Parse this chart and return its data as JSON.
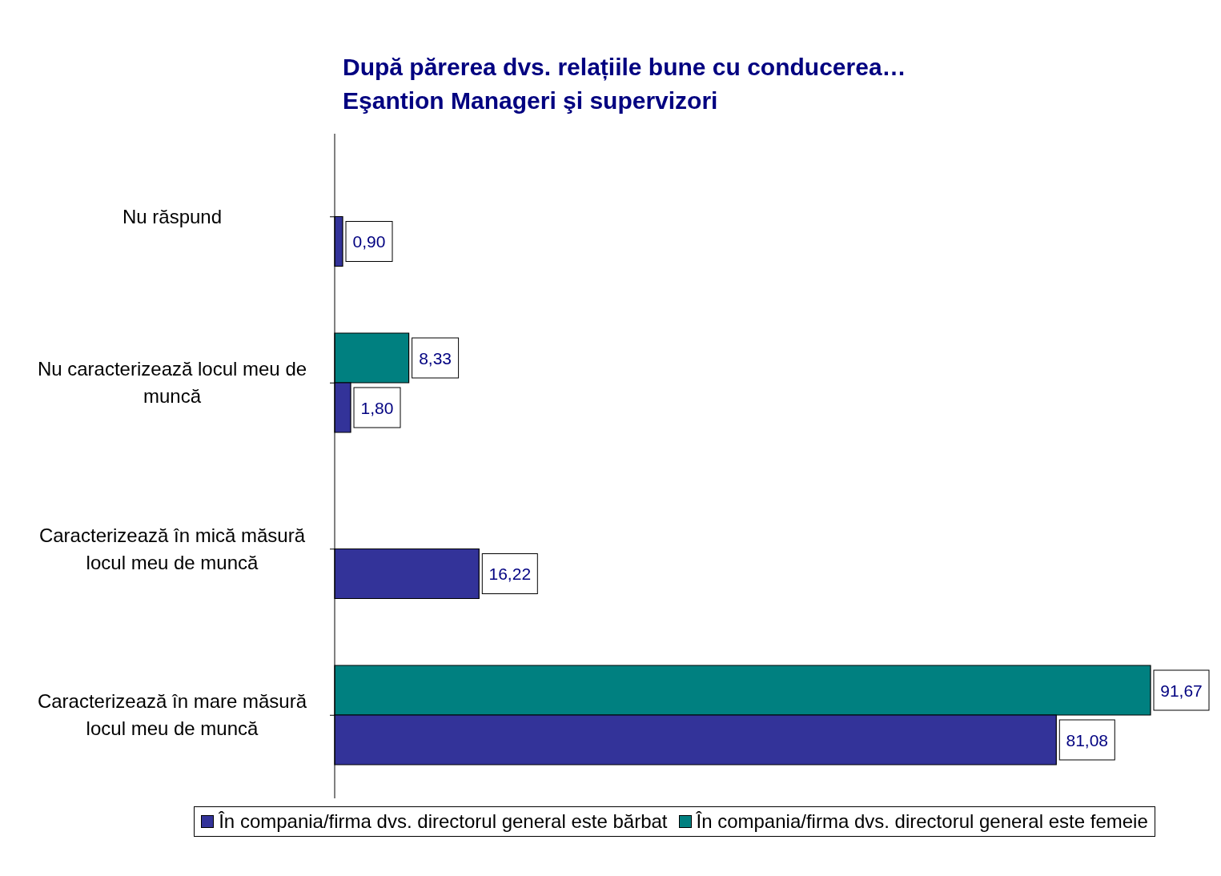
{
  "chart_data": {
    "type": "bar",
    "orientation": "horizontal",
    "title": "După părerea dvs. relațiile bune cu conducerea…",
    "subtitle": "Eşantion Manageri şi supervizori",
    "categories": [
      "Nu răspund",
      "Nu caracterizează locul meu de muncă",
      "Caracterizează în mică măsură locul meu de muncă",
      "Caracterizează în mare măsură locul meu de muncă"
    ],
    "series": [
      {
        "name": "În compania/firma dvs. directorul general este bărbat",
        "color": "#333399",
        "values": [
          0.9,
          1.8,
          16.22,
          81.08
        ],
        "value_labels": [
          "0,90",
          "1,80",
          "16,22",
          "81,08"
        ]
      },
      {
        "name": "În compania/firma dvs. directorul general este femeie",
        "color": "#008080",
        "values": [
          null,
          8.33,
          null,
          91.67
        ],
        "value_labels": [
          null,
          "8,33",
          null,
          "91,67"
        ]
      }
    ],
    "legend": "bottom",
    "grid": false
  }
}
